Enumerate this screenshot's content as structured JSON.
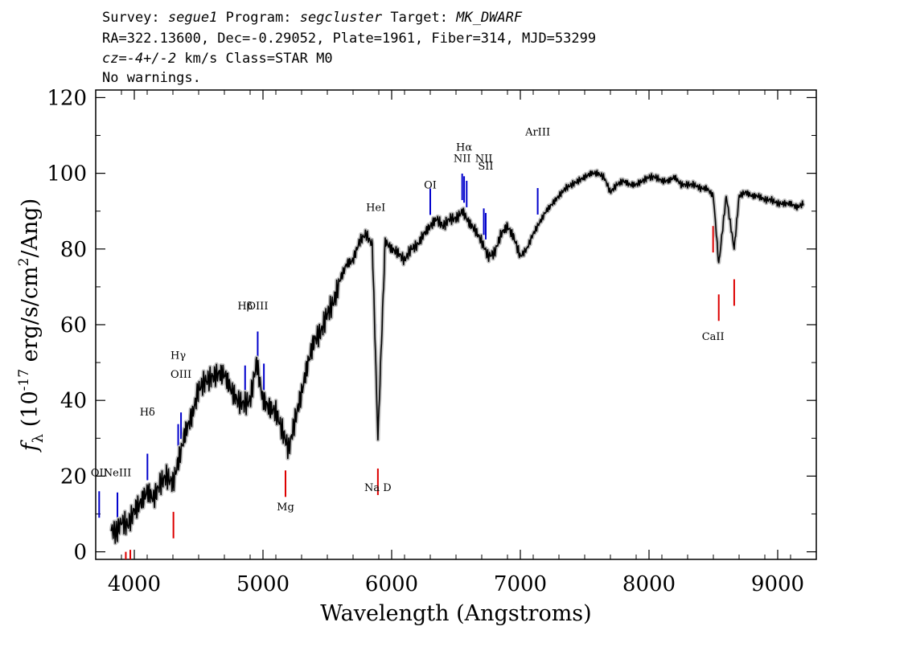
{
  "header": {
    "l1": {
      "survey_label": "Survey:",
      "survey": "segue1",
      "program_label": "Program:",
      "program": "segcluster",
      "target_label": "Target:",
      "target": "MK_DWARF"
    },
    "l2": "RA=322.13600, Dec=-0.29052, Plate=1961, Fiber=314, MJD=53299",
    "l3": {
      "cz": "cz=-4+/-2",
      "rest": "km/s Class=STAR M0"
    },
    "l4": "No warnings."
  },
  "chart_data": {
    "type": "line",
    "title": "",
    "xlabel": "Wavelength (Angstroms)",
    "ylabel": "f_λ (10^-17 erg/s/cm^2/Ang)",
    "xlim": [
      3700,
      9300
    ],
    "ylim": [
      -2,
      122
    ],
    "grid": false,
    "x_ticks": [
      4000,
      5000,
      6000,
      7000,
      8000,
      9000
    ],
    "y_ticks": [
      0,
      20,
      40,
      60,
      80,
      100,
      120
    ],
    "colors": {
      "spectrum": "#000000",
      "error": "#c0c0c0",
      "emission": "#0000cc",
      "absorption": "#dd0000"
    },
    "series": [
      {
        "x": [
          3820,
          3860,
          3900,
          3950,
          4000,
          4050,
          4100,
          4150,
          4200,
          4250,
          4300,
          4350,
          4400,
          4450,
          4500,
          4550,
          4600,
          4650,
          4700,
          4750,
          4800,
          4850,
          4900,
          4950,
          5000,
          5050,
          5100,
          5150,
          5200,
          5250,
          5300,
          5350,
          5400,
          5450,
          5500,
          5550,
          5600,
          5650,
          5700,
          5750,
          5800,
          5850,
          5893,
          5950,
          6000,
          6050,
          6100,
          6150,
          6200,
          6250,
          6300,
          6350,
          6400,
          6450,
          6500,
          6550,
          6600,
          6650,
          6700,
          6750,
          6800,
          6850,
          6900,
          6950,
          7000,
          7050,
          7100,
          7150,
          7200,
          7250,
          7300,
          7350,
          7400,
          7450,
          7500,
          7550,
          7600,
          7650,
          7700,
          7750,
          7800,
          7850,
          7900,
          7950,
          8000,
          8050,
          8100,
          8150,
          8200,
          8250,
          8300,
          8350,
          8400,
          8450,
          8500,
          8542,
          8600,
          8662,
          8700,
          8750,
          8800,
          8850,
          8900,
          8950,
          9000,
          9050,
          9100,
          9150,
          9200
        ],
        "y": [
          6,
          5,
          8,
          7,
          11,
          13,
          16,
          14,
          18,
          20,
          18,
          25,
          32,
          36,
          43,
          45,
          46,
          47,
          47,
          43,
          40,
          39,
          40,
          50,
          40,
          38,
          37,
          32,
          27,
          35,
          42,
          50,
          56,
          58,
          63,
          66,
          72,
          76,
          77,
          82,
          84,
          81,
          30,
          82,
          80,
          79,
          77,
          80,
          81,
          84,
          86,
          88,
          86,
          88,
          88,
          90,
          87,
          85,
          82,
          78,
          79,
          84,
          86,
          83,
          78,
          80,
          84,
          87,
          90,
          92,
          94,
          96,
          97,
          98,
          99,
          100,
          100,
          99,
          95,
          97,
          98,
          97,
          97,
          98,
          99,
          99,
          98,
          98,
          99,
          97,
          97,
          97,
          96,
          96,
          94,
          76,
          94,
          80,
          94,
          95,
          94,
          94,
          93,
          93,
          92,
          92,
          92,
          91,
          92
        ]
      }
    ],
    "emission_lines": [
      {
        "label": "OII",
        "wavelength": 3727,
        "label_y": 20
      },
      {
        "label": "NeIII",
        "wavelength": 3869,
        "label_y": 20
      },
      {
        "label": "Hδ",
        "wavelength": 4102,
        "label_y": 36
      },
      {
        "label": "Hγ",
        "wavelength": 4341,
        "label_y": 51
      },
      {
        "label": "OIII",
        "wavelength": 4363,
        "label_y": 46
      },
      {
        "label": "Hβ",
        "wavelength": 4861,
        "label_y": 64
      },
      {
        "label": "OIII",
        "wavelength": 4959,
        "label_y": 64
      },
      {
        "label": "OIII",
        "wavelength": 5007,
        "label_y": null
      },
      {
        "label": "HeI",
        "wavelength": 5876,
        "label_y": 90
      },
      {
        "label": "OI",
        "wavelength": 6300,
        "label_y": 96
      },
      {
        "label": "NII",
        "wavelength": 6548,
        "label_y": 103
      },
      {
        "label": "Hα",
        "wavelength": 6563,
        "label_y": 106
      },
      {
        "label": "NII",
        "wavelength": 6583,
        "label_y": null
      },
      {
        "label": "NII",
        "wavelength": 6716,
        "label_y": 103
      },
      {
        "label": "SII",
        "wavelength": 6731,
        "label_y": 101
      },
      {
        "label": "ArIII",
        "wavelength": 7135,
        "label_y": 110
      }
    ],
    "absorption_lines": [
      {
        "label": "",
        "wavelength": 3934,
        "label_y": null
      },
      {
        "label": "",
        "wavelength": 3969,
        "label_y": null
      },
      {
        "label": "",
        "wavelength": 4304,
        "label_y": null
      },
      {
        "label": "Mg",
        "wavelength": 5175,
        "label_y": 11
      },
      {
        "label": "Na D",
        "wavelength": 5893,
        "label_y": 16
      },
      {
        "label": "CaII",
        "wavelength": 8498,
        "label_y": 56
      },
      {
        "label": "",
        "wavelength": 8542,
        "label_y": null
      },
      {
        "label": "",
        "wavelength": 8662,
        "label_y": null
      }
    ]
  }
}
